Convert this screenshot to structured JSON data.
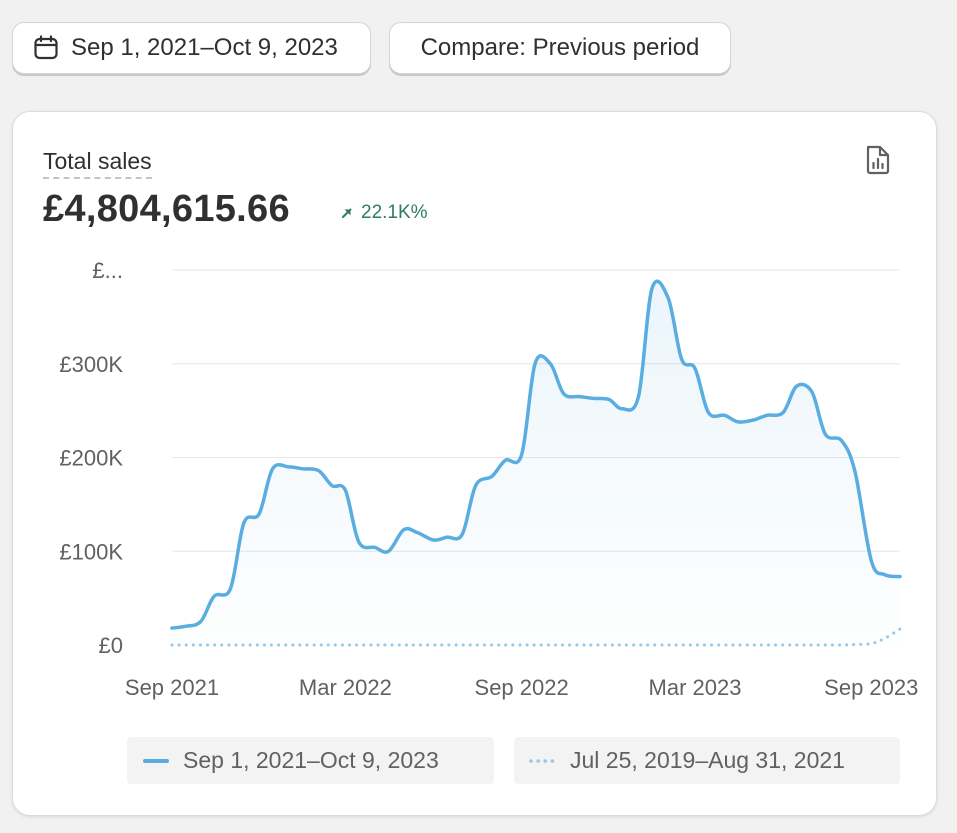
{
  "toolbar": {
    "date_range_label": "Sep 1, 2021–Oct 9, 2023",
    "compare_label": "Compare: Previous period"
  },
  "metric": {
    "title": "Total sales",
    "value": "£4,804,615.66",
    "change": "22.1K%",
    "change_direction": "up",
    "change_color": "#2e7d5b"
  },
  "icons": {
    "date": "calendar-icon",
    "export": "file-chart-icon",
    "change": "arrow-up-right-icon"
  },
  "chart_data": {
    "type": "area",
    "x": [
      "2021-09-01",
      "2021-09-15",
      "2021-10-01",
      "2021-10-15",
      "2021-11-01",
      "2021-11-15",
      "2021-12-01",
      "2021-12-15",
      "2022-01-01",
      "2022-01-15",
      "2022-02-01",
      "2022-02-15",
      "2022-03-01",
      "2022-03-15",
      "2022-04-01",
      "2022-04-15",
      "2022-05-01",
      "2022-05-15",
      "2022-06-01",
      "2022-06-15",
      "2022-07-01",
      "2022-07-15",
      "2022-08-01",
      "2022-08-15",
      "2022-09-01",
      "2022-09-15",
      "2022-10-01",
      "2022-10-15",
      "2022-11-01",
      "2022-11-15",
      "2022-12-01",
      "2022-12-15",
      "2023-01-01",
      "2023-01-15",
      "2023-02-01",
      "2023-02-15",
      "2023-03-01",
      "2023-03-15",
      "2023-04-01",
      "2023-04-15",
      "2023-05-01",
      "2023-05-15",
      "2023-06-01",
      "2023-06-15",
      "2023-07-01",
      "2023-07-15",
      "2023-08-01",
      "2023-08-15",
      "2023-09-01",
      "2023-09-15",
      "2023-10-01"
    ],
    "series": [
      {
        "name": "Sep 1, 2021–Oct 9, 2023",
        "style": "solid",
        "color": "#5aade0",
        "values": [
          18000,
          20000,
          25000,
          52000,
          60000,
          130000,
          140000,
          188000,
          190000,
          188000,
          186000,
          170000,
          165000,
          110000,
          104000,
          100000,
          123000,
          120000,
          112000,
          115000,
          118000,
          170000,
          180000,
          197000,
          203000,
          300000,
          300000,
          268000,
          265000,
          263000,
          262000,
          252000,
          265000,
          380000,
          370000,
          305000,
          295000,
          248000,
          245000,
          238000,
          240000,
          245000,
          248000,
          276000,
          270000,
          225000,
          218000,
          185000,
          90000,
          75000,
          73000
        ]
      },
      {
        "name": "Jul 25, 2019–Aug 31, 2021",
        "style": "dotted",
        "color": "#93c9ea",
        "values": [
          0,
          0,
          0,
          0,
          0,
          0,
          0,
          0,
          0,
          0,
          0,
          0,
          0,
          0,
          0,
          0,
          0,
          0,
          0,
          0,
          0,
          0,
          0,
          0,
          0,
          0,
          0,
          0,
          0,
          0,
          0,
          0,
          0,
          0,
          0,
          0,
          0,
          0,
          0,
          0,
          0,
          0,
          0,
          0,
          0,
          0,
          0,
          500,
          1500,
          7000,
          17000
        ]
      }
    ],
    "y_ticks": [
      {
        "value": 0,
        "label": "£0"
      },
      {
        "value": 100000,
        "label": "£100K"
      },
      {
        "value": 200000,
        "label": "£200K"
      },
      {
        "value": 300000,
        "label": "£300K"
      },
      {
        "value": 400000,
        "label": "£..."
      }
    ],
    "x_ticks": [
      {
        "date": "2021-09-01",
        "label": "Sep 2021"
      },
      {
        "date": "2022-03-01",
        "label": "Mar 2022"
      },
      {
        "date": "2022-09-01",
        "label": "Sep 2022"
      },
      {
        "date": "2023-03-01",
        "label": "Mar 2023"
      },
      {
        "date": "2023-09-01",
        "label": "Sep 2023"
      }
    ],
    "ylim": [
      0,
      400000
    ],
    "xlim": [
      "2021-09-01",
      "2023-10-01"
    ],
    "grid": true,
    "legend_position": "bottom"
  }
}
